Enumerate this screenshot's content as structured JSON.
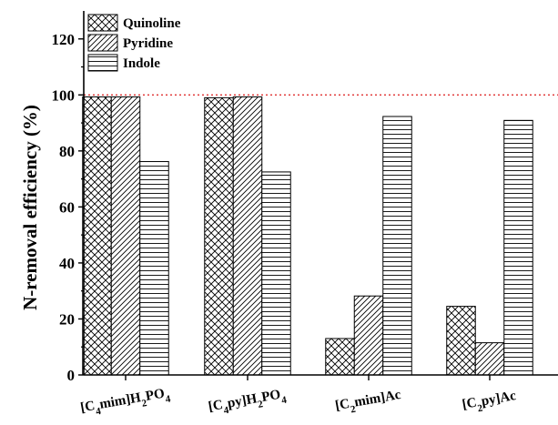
{
  "chart_data": {
    "type": "bar",
    "title": "",
    "xlabel": "",
    "ylabel": "N-removal efficiency (%)",
    "ylim": [
      0,
      130
    ],
    "yticks": [
      0,
      20,
      40,
      60,
      80,
      100,
      120
    ],
    "categories": [
      {
        "base": "[C",
        "sub1": "4",
        "mid": "mim]H",
        "sub2": "2",
        "mid2": "PO",
        "sub3": "4",
        "tail": ""
      },
      {
        "base": "[C",
        "sub1": "4",
        "mid": "py]H",
        "sub2": "2",
        "mid2": "PO",
        "sub3": "4",
        "tail": ""
      },
      {
        "base": "[C",
        "sub1": "2",
        "mid": "mim]Ac",
        "sub2": "",
        "mid2": "",
        "sub3": "",
        "tail": ""
      },
      {
        "base": "[C",
        "sub1": "2",
        "mid": "py]Ac",
        "sub2": "",
        "mid2": "",
        "sub3": "",
        "tail": ""
      }
    ],
    "series": [
      {
        "name": "Quinoline",
        "pattern": "crosshatch",
        "values": [
          99.3,
          99.0,
          13.0,
          24.5
        ]
      },
      {
        "name": "Pyridine",
        "pattern": "diagonal",
        "values": [
          99.3,
          99.3,
          28.2,
          11.5
        ]
      },
      {
        "name": "Indole",
        "pattern": "horizontal",
        "values": [
          76.2,
          72.5,
          92.3,
          90.9
        ]
      }
    ],
    "reference_line": {
      "y": 100,
      "color": "#e03030",
      "style": "dotted"
    },
    "legend_position": "top-left",
    "grid": false
  }
}
